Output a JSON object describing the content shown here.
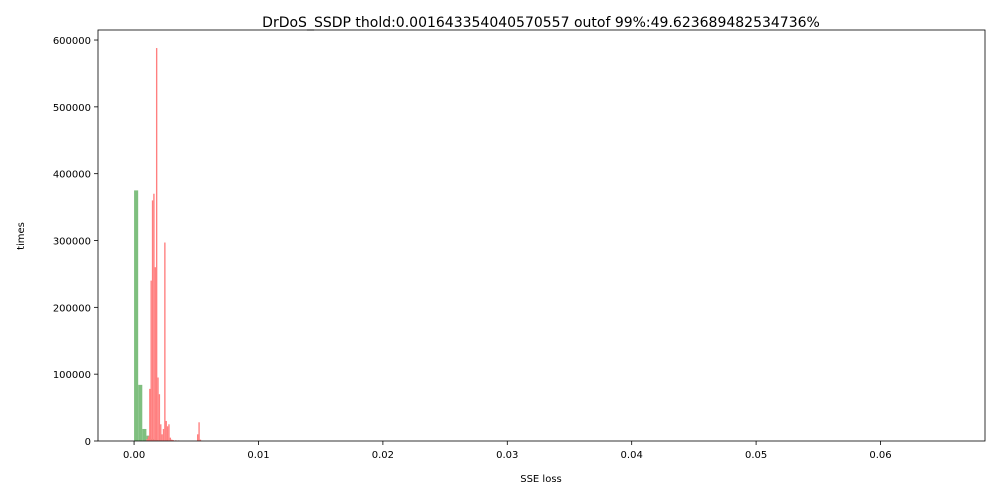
{
  "chart_data": {
    "type": "bar",
    "title": "DrDoS_SSDP thold:0.001643354040570557 outof 99%:49.623689482534736%",
    "xlabel": "SSE loss",
    "ylabel": "times",
    "xlim": [
      -0.0029,
      0.0684
    ],
    "ylim": [
      0,
      615000
    ],
    "x_ticks": [
      0.0,
      0.01,
      0.02,
      0.03,
      0.04,
      0.05,
      0.06
    ],
    "x_tick_labels": [
      "0.00",
      "0.01",
      "0.02",
      "0.03",
      "0.04",
      "0.05",
      "0.06"
    ],
    "y_ticks": [
      0,
      100000,
      200000,
      300000,
      400000,
      500000,
      600000
    ],
    "y_tick_labels": [
      "0",
      "100000",
      "200000",
      "300000",
      "400000",
      "500000",
      "600000"
    ],
    "grid": false,
    "series": [
      {
        "color": "#7fbf7f",
        "bin_width": 0.00033,
        "bins": [
          {
            "x": 0.0,
            "y": 375000
          },
          {
            "x": 0.00033,
            "y": 84000
          },
          {
            "x": 0.00066,
            "y": 18000
          },
          {
            "x": 0.00099,
            "y": 8000
          },
          {
            "x": 0.00132,
            "y": 3000
          },
          {
            "x": 0.00165,
            "y": 1500
          },
          {
            "x": 0.00198,
            "y": 600
          },
          {
            "x": 0.00231,
            "y": 200
          }
        ]
      },
      {
        "color": "#ff7f7f",
        "bin_width": 0.00011,
        "bins": [
          {
            "x": 0.00099,
            "y": 3000
          },
          {
            "x": 0.0011,
            "y": 7000
          },
          {
            "x": 0.00121,
            "y": 78000
          },
          {
            "x": 0.00132,
            "y": 240000
          },
          {
            "x": 0.00143,
            "y": 360000
          },
          {
            "x": 0.00154,
            "y": 370000
          },
          {
            "x": 0.00165,
            "y": 260000
          },
          {
            "x": 0.00176,
            "y": 588000
          },
          {
            "x": 0.00187,
            "y": 95000
          },
          {
            "x": 0.00198,
            "y": 70000
          },
          {
            "x": 0.00209,
            "y": 25000
          },
          {
            "x": 0.0022,
            "y": 10000
          },
          {
            "x": 0.00231,
            "y": 18000
          },
          {
            "x": 0.00242,
            "y": 297000
          },
          {
            "x": 0.00253,
            "y": 30000
          },
          {
            "x": 0.00264,
            "y": 22000
          },
          {
            "x": 0.00275,
            "y": 25000
          },
          {
            "x": 0.00286,
            "y": 5000
          },
          {
            "x": 0.00297,
            "y": 2000
          },
          {
            "x": 0.00308,
            "y": 1500
          },
          {
            "x": 0.0033,
            "y": 1000
          },
          {
            "x": 0.00352,
            "y": 800
          },
          {
            "x": 0.00506,
            "y": 10000
          },
          {
            "x": 0.00517,
            "y": 28000
          },
          {
            "x": 0.00528,
            "y": 2000
          }
        ]
      }
    ]
  }
}
